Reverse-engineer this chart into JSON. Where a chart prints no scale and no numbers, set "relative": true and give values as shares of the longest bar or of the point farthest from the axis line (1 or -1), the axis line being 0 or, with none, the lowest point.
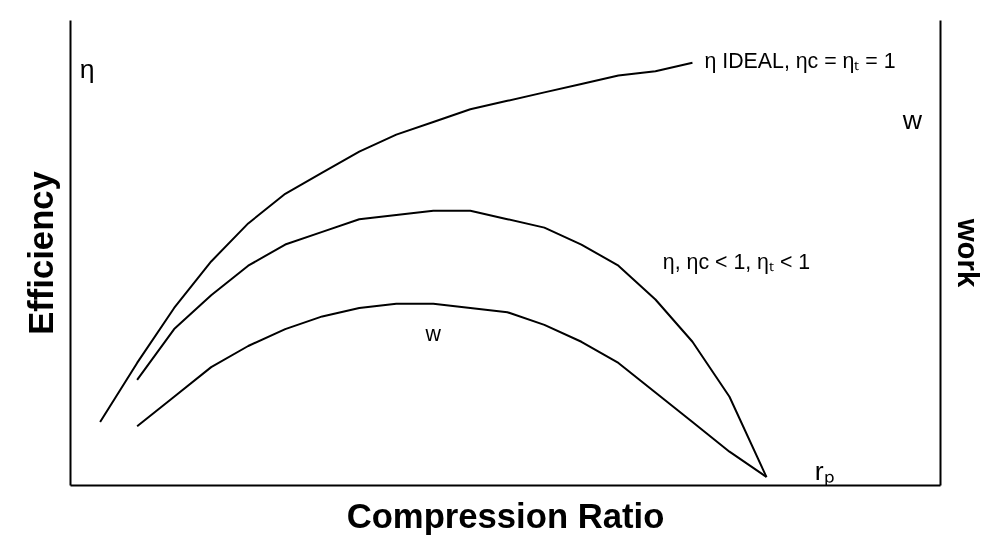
{
  "chart_data": {
    "type": "line",
    "relative": true,
    "grid": false,
    "xlabel": "Compression Ratio",
    "ylabel": "Efficiency",
    "annotations": [
      "η",
      "w",
      "rₚ",
      "work"
    ],
    "categories": [
      null,
      null,
      null,
      null,
      null,
      null,
      null,
      null,
      null,
      null,
      null,
      null,
      null,
      null,
      null,
      null,
      null,
      null,
      null
    ],
    "series": [
      {
        "name": "η IDEAL, ηc = ηₜ = 1",
        "color": "#000000",
        "values": [
          0.15,
          0.29,
          0.42,
          0.53,
          0.62,
          0.69,
          0.74,
          0.79,
          0.83,
          0.86,
          0.89,
          0.91,
          0.93,
          0.95,
          0.97,
          0.98,
          1.0,
          null,
          null
        ]
      },
      {
        "name": "η, ηc < 1, ηₜ < 1",
        "color": "#000000",
        "values": [
          null,
          0.25,
          0.37,
          0.45,
          0.52,
          0.57,
          0.6,
          0.63,
          0.64,
          0.65,
          0.65,
          0.63,
          0.61,
          0.57,
          0.52,
          0.44,
          0.34,
          0.21,
          0.02
        ]
      },
      {
        "name": "w",
        "color": "#000000",
        "values": [
          null,
          0.14,
          0.21,
          0.28,
          0.33,
          0.37,
          0.4,
          0.42,
          0.43,
          0.43,
          0.42,
          0.41,
          0.38,
          0.34,
          0.29,
          0.22,
          0.15,
          0.08,
          0.02
        ]
      }
    ]
  }
}
